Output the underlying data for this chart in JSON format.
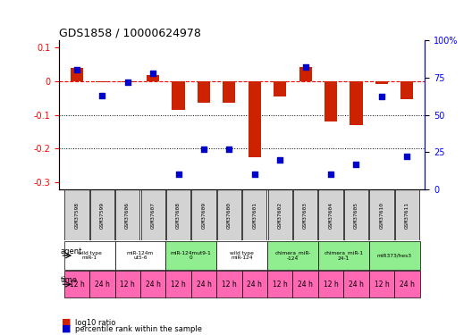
{
  "title": "GDS1858 / 10000624978",
  "samples": [
    "GSM37598",
    "GSM37599",
    "GSM37606",
    "GSM37607",
    "GSM37608",
    "GSM37609",
    "GSM37600",
    "GSM37601",
    "GSM37602",
    "GSM37603",
    "GSM37604",
    "GSM37605",
    "GSM37610",
    "GSM37611"
  ],
  "log10_ratio": [
    0.038,
    -0.005,
    -0.005,
    0.018,
    -0.085,
    -0.065,
    -0.065,
    -0.225,
    -0.045,
    0.042,
    -0.12,
    -0.13,
    -0.01,
    -0.055
  ],
  "percentile_rank": [
    0.8,
    0.63,
    0.72,
    0.78,
    0.1,
    0.27,
    0.27,
    0.1,
    0.2,
    0.82,
    0.1,
    0.17,
    0.62,
    0.22
  ],
  "agent_groups": [
    {
      "label": "wild type\nmiR-1",
      "cols": [
        0,
        1
      ],
      "color": "#ffffff"
    },
    {
      "label": "miR-124m\nut5-6",
      "cols": [
        2,
        3
      ],
      "color": "#ffffff"
    },
    {
      "label": "miR-124mut9-1\n0",
      "cols": [
        4,
        5
      ],
      "color": "#90ee90"
    },
    {
      "label": "wild type\nmiR-124",
      "cols": [
        6,
        7
      ],
      "color": "#ffffff"
    },
    {
      "label": "chimera_miR-\n-124",
      "cols": [
        8,
        9
      ],
      "color": "#90ee90"
    },
    {
      "label": "chimera_miR-1\n24-1",
      "cols": [
        10,
        11
      ],
      "color": "#90ee90"
    },
    {
      "label": "miR373/hes3",
      "cols": [
        12,
        13
      ],
      "color": "#90ee90"
    }
  ],
  "time_labels": [
    "12 h",
    "24 h",
    "12 h",
    "24 h",
    "12 h",
    "24 h",
    "12 h",
    "24 h",
    "12 h",
    "24 h",
    "12 h",
    "24 h",
    "12 h",
    "24 h"
  ],
  "time_color": "#ff69b4",
  "bar_color": "#cc2200",
  "dot_color": "#0000cc",
  "ylim_left": [
    -0.32,
    0.12
  ],
  "ylim_right": [
    0,
    100
  ],
  "yticks_left": [
    0.1,
    0.0,
    -0.1,
    -0.2,
    -0.3
  ],
  "yticks_right": [
    100,
    75,
    50,
    25,
    0
  ],
  "hline_y": 0.0,
  "dotted_lines": [
    -0.1,
    -0.2
  ]
}
